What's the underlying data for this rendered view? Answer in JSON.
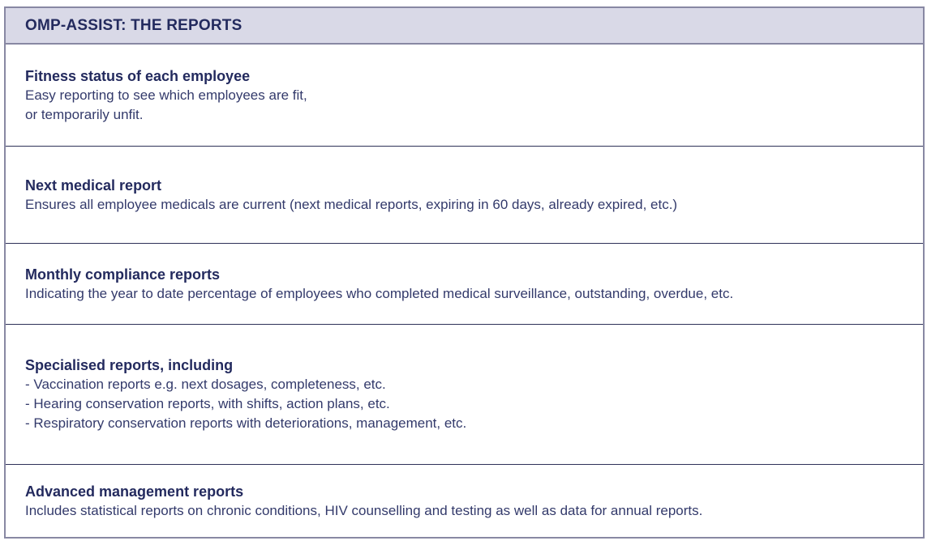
{
  "header": {
    "title": "OMP-ASSIST: THE REPORTS"
  },
  "colors": {
    "header_background": "#d9d9e7",
    "outer_border": "#8888a3",
    "row_divider": "#2e3158",
    "title_text": "#232a5e",
    "body_text": "#333a6b"
  },
  "rows": [
    {
      "title": "Fitness status of each employee",
      "lines": [
        "Easy reporting to see which employees are fit,",
        "or temporarily unfit."
      ]
    },
    {
      "title": "Next medical report",
      "lines": [
        "Ensures all employee medicals are current (next medical reports, expiring in 60 days, already expired, etc.)"
      ]
    },
    {
      "title": "Monthly compliance reports",
      "lines": [
        "Indicating the year to date percentage of employees who completed medical surveillance, outstanding, overdue, etc."
      ]
    },
    {
      "title": "Specialised reports, including",
      "lines": [
        "- Vaccination reports e.g. next dosages, completeness, etc.",
        "- Hearing conservation reports, with shifts, action plans, etc.",
        "- Respiratory conservation reports with deteriorations, management, etc."
      ]
    },
    {
      "title": "Advanced management reports",
      "lines": [
        "Includes statistical reports on chronic conditions, HIV counselling and testing as well as data for annual reports."
      ]
    }
  ]
}
